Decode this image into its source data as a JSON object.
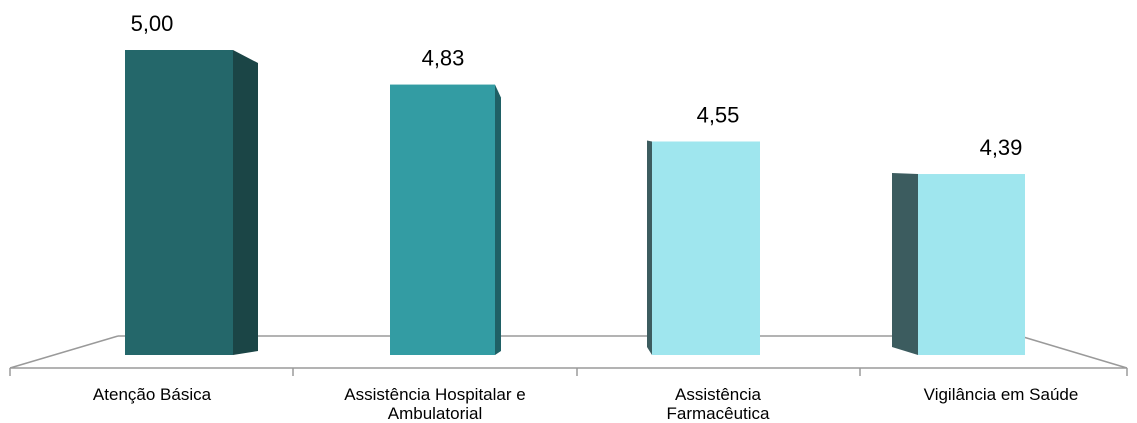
{
  "chart_data": {
    "type": "bar",
    "title": "",
    "xlabel": "",
    "ylabel": "",
    "categories": [
      [
        "Atenção Básica"
      ],
      [
        "Assistência Hospitalar e",
        "Ambulatorial"
      ],
      [
        "Assistência",
        "Farmacêutica"
      ],
      [
        "Vigilância em Saúde"
      ]
    ],
    "values": [
      5.0,
      4.83,
      4.55,
      4.39
    ],
    "value_labels": [
      "5,00",
      "4,83",
      "4,55",
      "4,39"
    ],
    "ylim": [
      3.5,
      5.0
    ],
    "grid": false,
    "legend": "none",
    "colors": {
      "front": [
        "#24676A",
        "#339CA3",
        "#9FE6EE",
        "#9FE6EE"
      ],
      "side": [
        "#1B4546",
        "#1F6065",
        "#3C5C5F",
        "#3C5C5F"
      ],
      "floor_line": "#9A9A9A"
    }
  }
}
